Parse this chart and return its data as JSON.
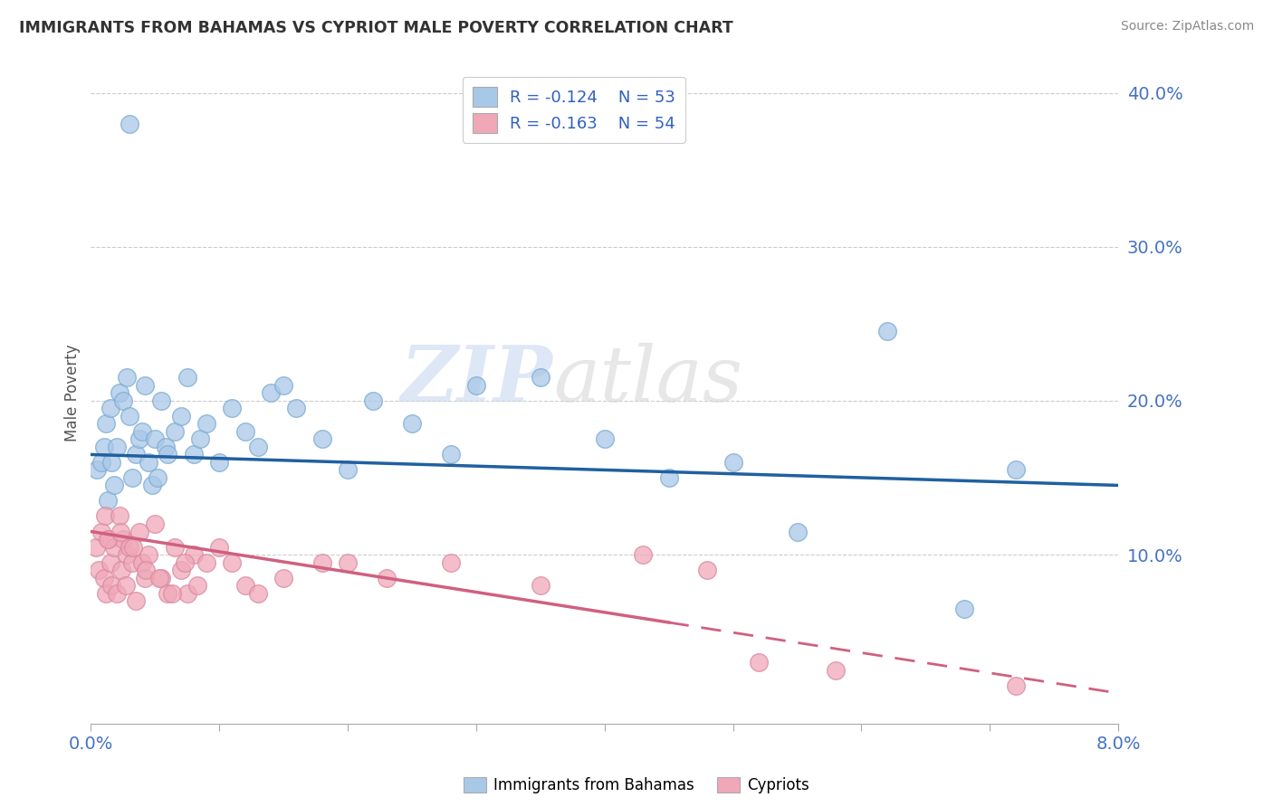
{
  "title": "IMMIGRANTS FROM BAHAMAS VS CYPRIOT MALE POVERTY CORRELATION CHART",
  "source": "Source: ZipAtlas.com",
  "ylabel": "Male Poverty",
  "xlim": [
    0.0,
    8.0
  ],
  "ylim": [
    -1.0,
    42.0
  ],
  "yticks": [
    10.0,
    20.0,
    30.0,
    40.0
  ],
  "xticks": [
    0.0,
    1.0,
    2.0,
    3.0,
    4.0,
    5.0,
    6.0,
    7.0,
    8.0
  ],
  "legend_blue_r": "R = -0.124",
  "legend_blue_n": "N = 53",
  "legend_pink_r": "R = -0.163",
  "legend_pink_n": "N = 54",
  "legend_blue_label": "Immigrants from Bahamas",
  "legend_pink_label": "Cypriots",
  "blue_color": "#a8c8e8",
  "pink_color": "#f0a8b8",
  "blue_line_color": "#2060a0",
  "pink_line_color": "#d06080",
  "watermark_zip": "ZIP",
  "watermark_atlas": "atlas",
  "blue_trend_x0": 0.0,
  "blue_trend_y0": 16.5,
  "blue_trend_x1": 8.0,
  "blue_trend_y1": 14.5,
  "pink_trend_x0": 0.0,
  "pink_trend_y0": 11.5,
  "pink_trend_x1": 8.0,
  "pink_trend_y1": 1.0,
  "pink_solid_end": 4.5,
  "blue_scatter_x": [
    0.05,
    0.08,
    0.1,
    0.12,
    0.13,
    0.15,
    0.16,
    0.18,
    0.2,
    0.22,
    0.25,
    0.28,
    0.3,
    0.32,
    0.35,
    0.38,
    0.4,
    0.42,
    0.45,
    0.48,
    0.5,
    0.52,
    0.55,
    0.58,
    0.6,
    0.65,
    0.7,
    0.75,
    0.8,
    0.85,
    0.9,
    1.0,
    1.1,
    1.2,
    1.3,
    1.4,
    1.5,
    1.6,
    1.8,
    2.0,
    2.2,
    2.5,
    2.8,
    3.0,
    3.5,
    4.0,
    4.5,
    5.0,
    5.5,
    6.2,
    6.8,
    7.2,
    0.3
  ],
  "blue_scatter_y": [
    15.5,
    16.0,
    17.0,
    18.5,
    13.5,
    19.5,
    16.0,
    14.5,
    17.0,
    20.5,
    20.0,
    21.5,
    19.0,
    15.0,
    16.5,
    17.5,
    18.0,
    21.0,
    16.0,
    14.5,
    17.5,
    15.0,
    20.0,
    17.0,
    16.5,
    18.0,
    19.0,
    21.5,
    16.5,
    17.5,
    18.5,
    16.0,
    19.5,
    18.0,
    17.0,
    20.5,
    21.0,
    19.5,
    17.5,
    15.5,
    20.0,
    18.5,
    16.5,
    21.0,
    21.5,
    17.5,
    15.0,
    16.0,
    11.5,
    24.5,
    6.5,
    15.5,
    38.0
  ],
  "pink_scatter_x": [
    0.04,
    0.06,
    0.08,
    0.1,
    0.11,
    0.12,
    0.14,
    0.15,
    0.16,
    0.18,
    0.2,
    0.22,
    0.24,
    0.25,
    0.27,
    0.28,
    0.3,
    0.32,
    0.35,
    0.38,
    0.4,
    0.42,
    0.45,
    0.5,
    0.55,
    0.6,
    0.65,
    0.7,
    0.75,
    0.8,
    0.9,
    1.0,
    1.1,
    1.2,
    1.3,
    1.5,
    1.8,
    2.0,
    2.3,
    2.8,
    3.5,
    4.3,
    4.8,
    5.2,
    5.8,
    0.13,
    0.23,
    0.33,
    0.43,
    0.53,
    0.63,
    0.73,
    0.83,
    7.2
  ],
  "pink_scatter_y": [
    10.5,
    9.0,
    11.5,
    8.5,
    12.5,
    7.5,
    11.0,
    9.5,
    8.0,
    10.5,
    7.5,
    12.5,
    9.0,
    11.0,
    8.0,
    10.0,
    10.5,
    9.5,
    7.0,
    11.5,
    9.5,
    8.5,
    10.0,
    12.0,
    8.5,
    7.5,
    10.5,
    9.0,
    7.5,
    10.0,
    9.5,
    10.5,
    9.5,
    8.0,
    7.5,
    8.5,
    9.5,
    9.5,
    8.5,
    9.5,
    8.0,
    10.0,
    9.0,
    3.0,
    2.5,
    11.0,
    11.5,
    10.5,
    9.0,
    8.5,
    7.5,
    9.5,
    8.0,
    1.5
  ]
}
